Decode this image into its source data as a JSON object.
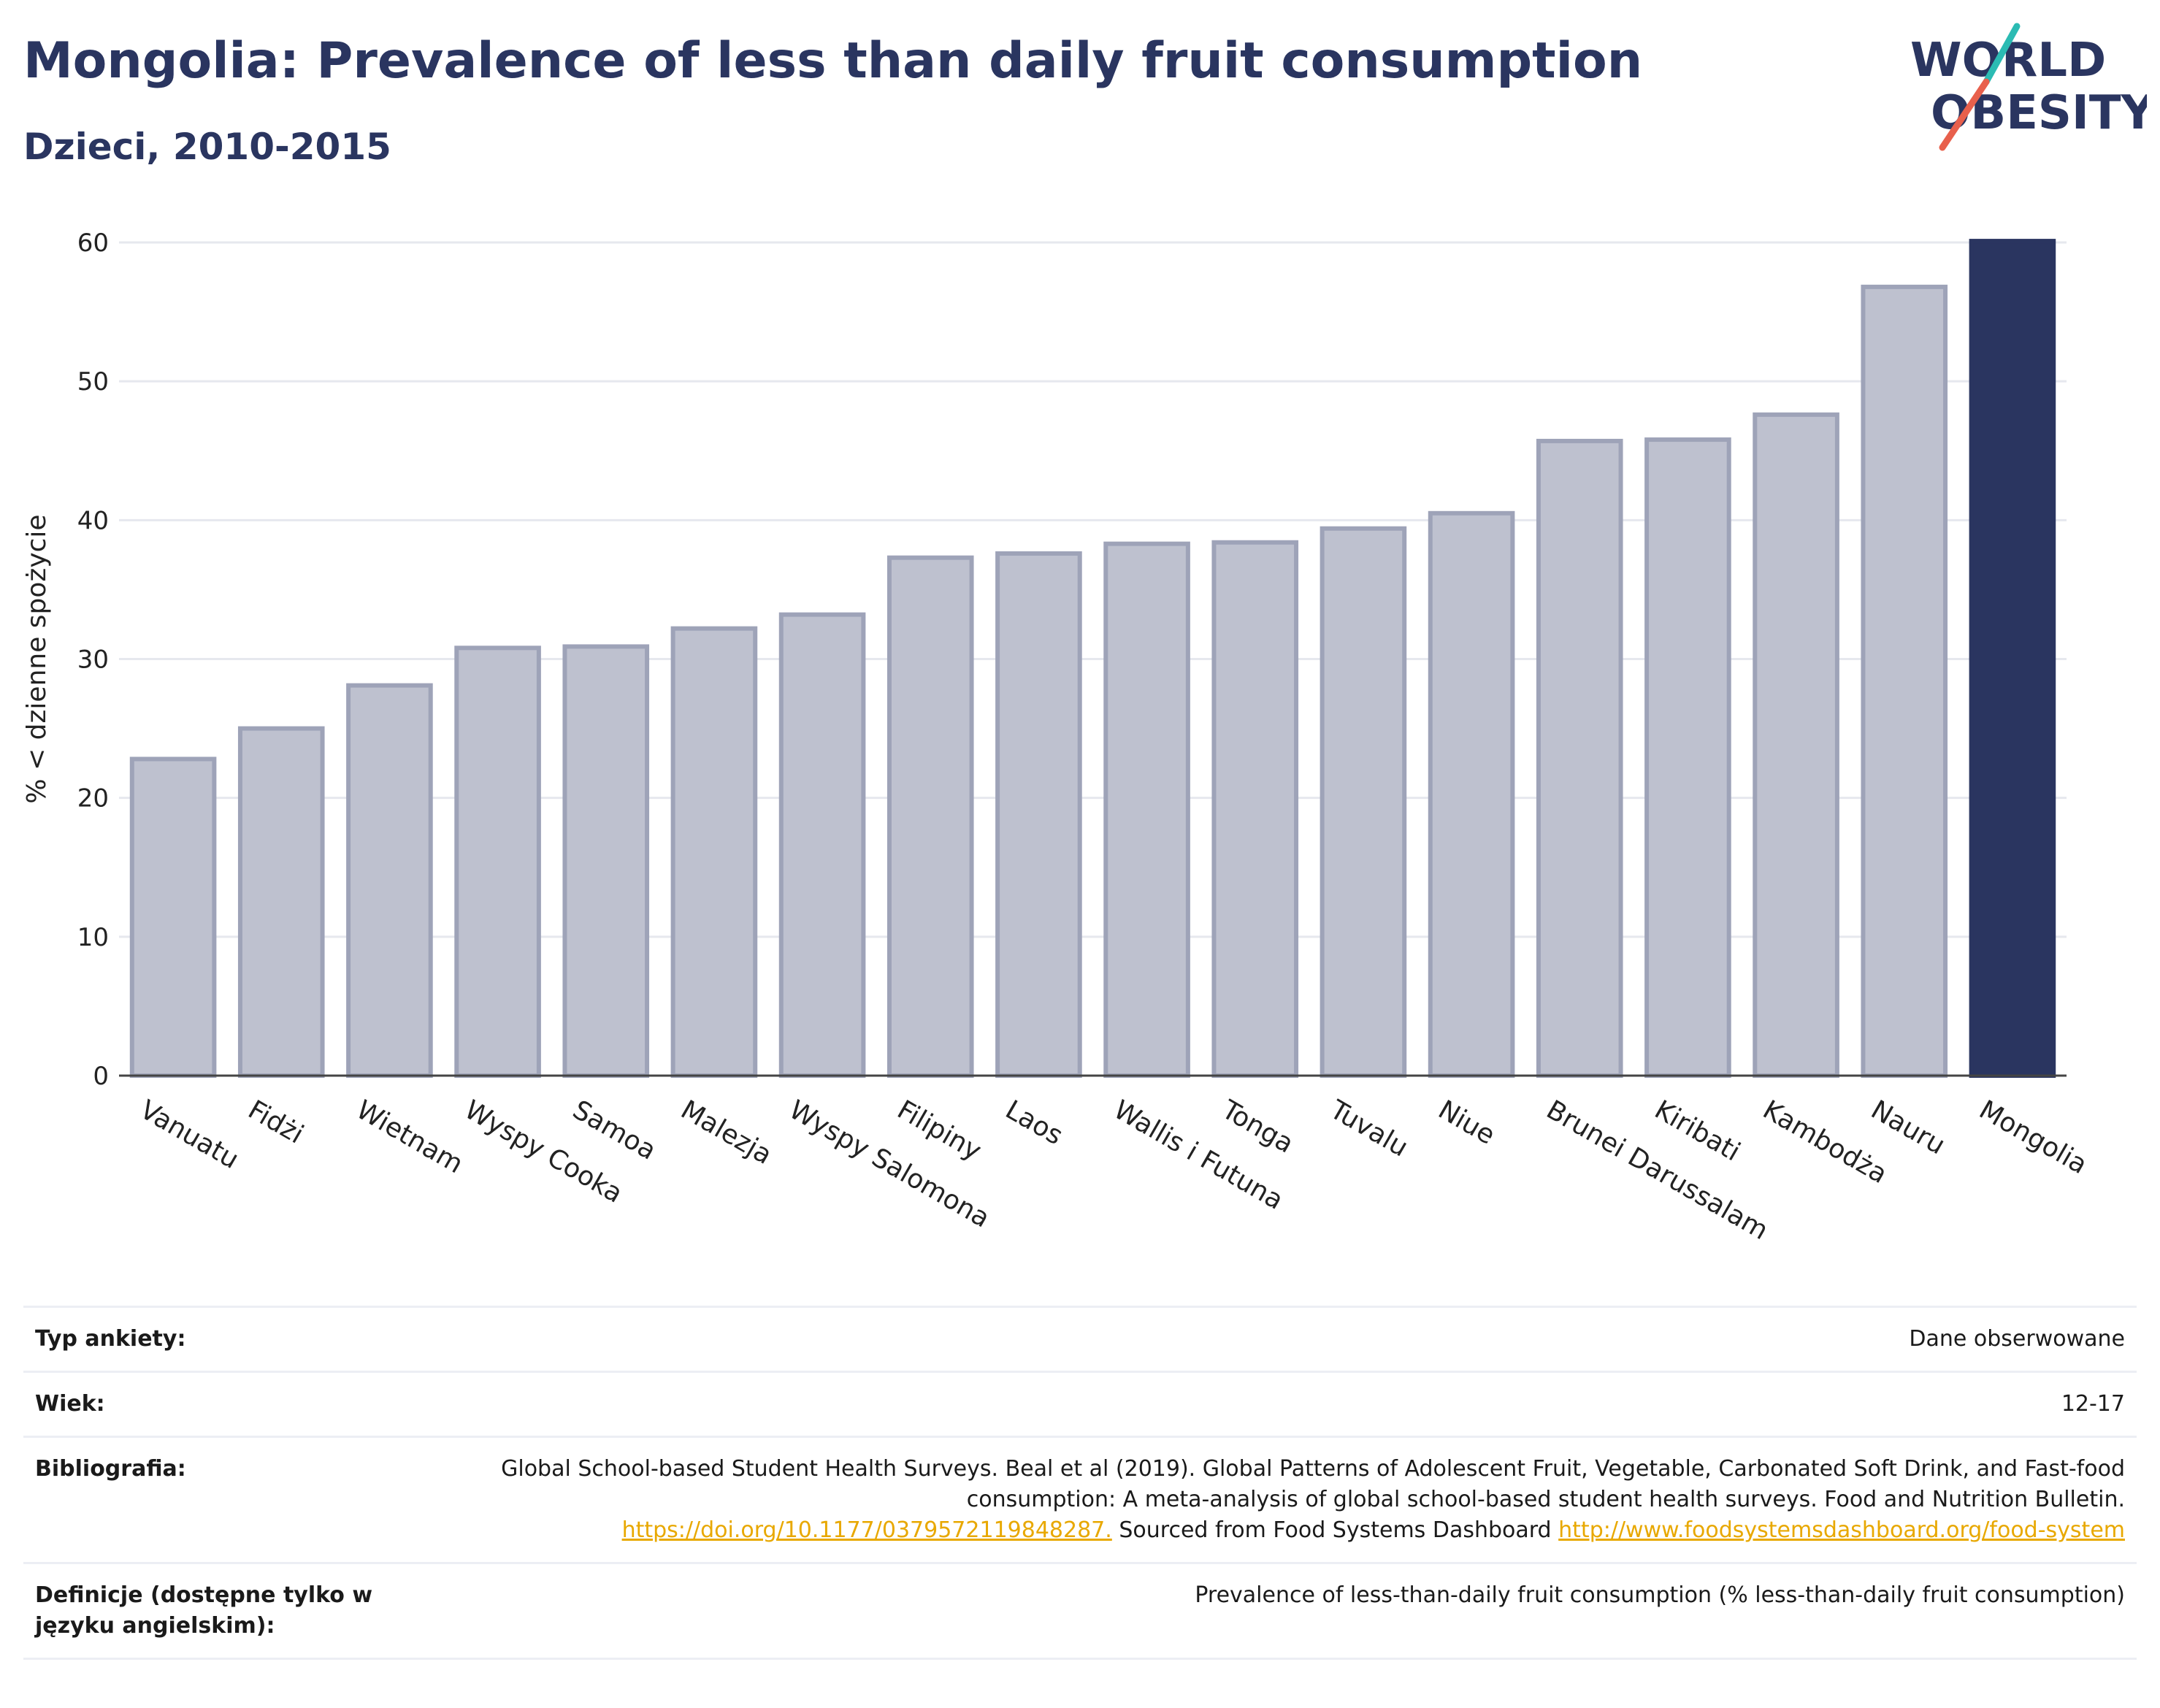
{
  "header": {
    "title": "Mongolia: Prevalence of less than daily fruit consumption",
    "subtitle": "Dzieci, 2010-2015"
  },
  "logo": {
    "line1": "WORLD",
    "line2": "OBESITY",
    "slash_colors": [
      "#2bbbb3",
      "#e8604c"
    ]
  },
  "colors": {
    "highlight": "#2a3560",
    "bar_fill": "#bec1cf",
    "bar_stroke": "#9ea3b8",
    "grid": "#e6e8ee"
  },
  "chart_data": {
    "type": "bar",
    "categories": [
      "Vanuatu",
      "Fidżi",
      "Wietnam",
      "Wyspy Cooka",
      "Samoa",
      "Malezja",
      "Wyspy Salomona",
      "Filipiny",
      "Laos",
      "Wallis i Futuna",
      "Tonga",
      "Tuvalu",
      "Niue",
      "Brunei Darussalam",
      "Kiribati",
      "Kambodża",
      "Nauru",
      "Mongolia"
    ],
    "values": [
      22.8,
      25.0,
      28.1,
      30.8,
      30.9,
      32.2,
      33.2,
      37.3,
      37.6,
      38.3,
      38.4,
      39.4,
      40.5,
      45.7,
      45.8,
      47.6,
      56.8,
      60.1
    ],
    "highlight": "Mongolia",
    "ylabel": "% < dzienne spożycie",
    "xlabel": "",
    "ylim": [
      0,
      60
    ],
    "yticks": [
      0,
      10,
      20,
      30,
      40,
      50,
      60
    ],
    "grid": true,
    "legend": "none"
  },
  "info": {
    "survey_label": "Typ ankiety:",
    "survey_value": "Dane obserwowane",
    "age_label": "Wiek:",
    "age_value": "12-17",
    "bib_label": "Bibliografia:",
    "bib_text_1": "Global School-based Student Health Surveys. Beal et al (2019). Global Patterns of Adolescent Fruit, Vegetable, Carbonated Soft Drink, and Fast-food consumption: A meta-analysis of global school-based student health surveys. Food and Nutrition Bulletin.",
    "bib_link_1": "https://doi.org/10.1177/0379572119848287.",
    "bib_text_2": "Sourced from Food Systems Dashboard",
    "bib_link_2": "http://www.foodsystemsdashboard.org/food-system",
    "def_label": "Definicje (dostępne tylko w języku angielskim):",
    "def_value": "Prevalence of less-than-daily fruit consumption (% less-than-daily fruit consumption)"
  }
}
